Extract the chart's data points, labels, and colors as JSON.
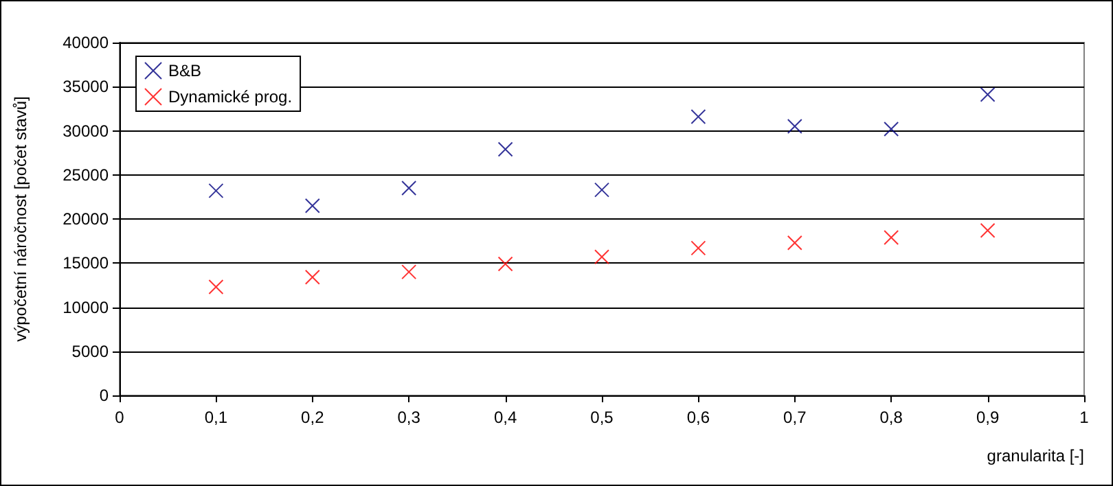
{
  "chart_data": {
    "type": "scatter",
    "xlabel": "granularita [-]",
    "ylabel": "výpočetní náročnost [počet stavů]",
    "x": [
      0.1,
      0.2,
      0.3,
      0.4,
      0.5,
      0.6,
      0.7,
      0.8,
      0.9
    ],
    "series": [
      {
        "name": "B&B",
        "color": "#000080",
        "values": [
          23200,
          21500,
          23500,
          27900,
          23300,
          31600,
          30500,
          30200,
          34100
        ]
      },
      {
        "name": "Dynamické prog.",
        "color": "#ff0000",
        "values": [
          12300,
          13400,
          14000,
          14900,
          15700,
          16700,
          17300,
          17900,
          18700
        ]
      }
    ],
    "xlim": [
      0,
      1
    ],
    "xticks": [
      0,
      {
        "value": 0.1,
        "label": "0,1"
      },
      {
        "value": 0.2,
        "label": "0,2"
      },
      {
        "value": 0.3,
        "label": "0,3"
      },
      {
        "value": 0.4,
        "label": "0,4"
      },
      {
        "value": 0.5,
        "label": "0,5"
      },
      {
        "value": 0.6,
        "label": "0,6"
      },
      {
        "value": 0.7,
        "label": "0,7"
      },
      {
        "value": 0.8,
        "label": "0,8"
      },
      {
        "value": 0.9,
        "label": "0,9"
      },
      1
    ],
    "ylim": [
      0,
      40000
    ],
    "yticks": [
      0,
      5000,
      10000,
      15000,
      20000,
      25000,
      30000,
      35000,
      40000
    ],
    "grid": "y",
    "legend": "top left",
    "marker": "cross"
  }
}
